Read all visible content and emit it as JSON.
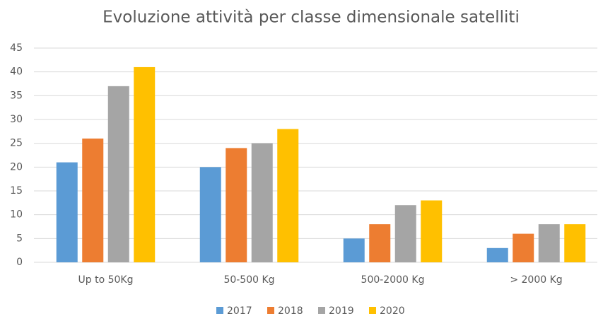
{
  "chart_data": {
    "type": "bar",
    "title": "Evoluzione attività per classe dimensionale satelliti",
    "categories": [
      "Up to 50Kg",
      "50-500 Kg",
      "500-2000 Kg",
      "> 2000 Kg"
    ],
    "series": [
      {
        "name": "2017",
        "color": "#5b9bd5",
        "values": [
          21,
          20,
          5,
          3
        ]
      },
      {
        "name": "2018",
        "color": "#ed7d31",
        "values": [
          26,
          24,
          8,
          6
        ]
      },
      {
        "name": "2019",
        "color": "#a5a5a5",
        "values": [
          37,
          25,
          12,
          8
        ]
      },
      {
        "name": "2020",
        "color": "#ffc000",
        "values": [
          41,
          28,
          13,
          8
        ]
      }
    ],
    "ylim": [
      0,
      45
    ],
    "yticks": [
      0,
      5,
      10,
      15,
      20,
      25,
      30,
      35,
      40,
      45
    ],
    "grid": true,
    "legend": "bottom"
  }
}
